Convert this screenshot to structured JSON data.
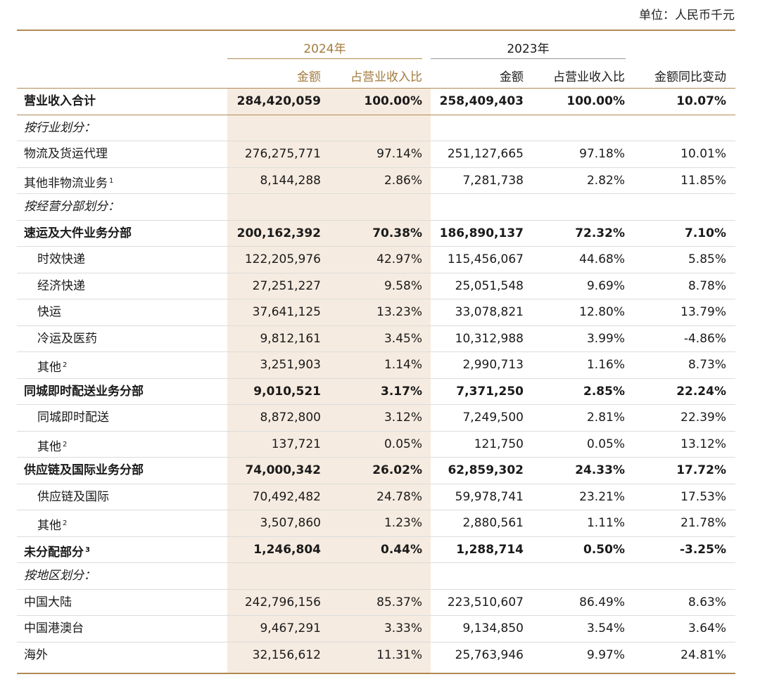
{
  "unit_label": "单位：人民币千元",
  "headers": {
    "year_2024": "2024年",
    "year_2023": "2023年",
    "amount_2024": "金额",
    "ratio_2024": "占营业收入比",
    "amount_2023": "金额",
    "ratio_2023": "占营业收入比",
    "yoy": "金额同比变动"
  },
  "colors": {
    "accent": "#b08a53",
    "accent_text": "#a37a3d",
    "shade": "#f6ebe0"
  },
  "rows": [
    {
      "label": "营业收入合计",
      "sup": "",
      "style": "bold",
      "v": [
        "284,420,059",
        "100.00%",
        "258,409,403",
        "100.00%",
        "10.07%"
      ]
    },
    {
      "label": "按行业划分：",
      "sup": "",
      "style": "section",
      "v": [
        "",
        "",
        "",
        "",
        ""
      ]
    },
    {
      "label": "物流及货运代理",
      "sup": "",
      "style": "normal",
      "v": [
        "276,275,771",
        "97.14%",
        "251,127,665",
        "97.18%",
        "10.01%"
      ]
    },
    {
      "label": "其他非物流业务",
      "sup": "1",
      "style": "normal",
      "v": [
        "8,144,288",
        "2.86%",
        "7,281,738",
        "2.82%",
        "11.85%"
      ]
    },
    {
      "label": "按经营分部划分：",
      "sup": "",
      "style": "section",
      "v": [
        "",
        "",
        "",
        "",
        ""
      ]
    },
    {
      "label": "速运及大件业务分部",
      "sup": "",
      "style": "bold",
      "v": [
        "200,162,392",
        "70.38%",
        "186,890,137",
        "72.32%",
        "7.10%"
      ]
    },
    {
      "label": "时效快递",
      "sup": "",
      "style": "indent",
      "v": [
        "122,205,976",
        "42.97%",
        "115,456,067",
        "44.68%",
        "5.85%"
      ]
    },
    {
      "label": "经济快递",
      "sup": "",
      "style": "indent",
      "v": [
        "27,251,227",
        "9.58%",
        "25,051,548",
        "9.69%",
        "8.78%"
      ]
    },
    {
      "label": "快运",
      "sup": "",
      "style": "indent",
      "v": [
        "37,641,125",
        "13.23%",
        "33,078,821",
        "12.80%",
        "13.79%"
      ]
    },
    {
      "label": "冷运及医药",
      "sup": "",
      "style": "indent",
      "v": [
        "9,812,161",
        "3.45%",
        "10,312,988",
        "3.99%",
        "-4.86%"
      ]
    },
    {
      "label": "其他",
      "sup": "2",
      "style": "indent",
      "v": [
        "3,251,903",
        "1.14%",
        "2,990,713",
        "1.16%",
        "8.73%"
      ]
    },
    {
      "label": "同城即时配送业务分部",
      "sup": "",
      "style": "bold",
      "v": [
        "9,010,521",
        "3.17%",
        "7,371,250",
        "2.85%",
        "22.24%"
      ]
    },
    {
      "label": "同城即时配送",
      "sup": "",
      "style": "indent",
      "v": [
        "8,872,800",
        "3.12%",
        "7,249,500",
        "2.81%",
        "22.39%"
      ]
    },
    {
      "label": "其他",
      "sup": "2",
      "style": "indent",
      "v": [
        "137,721",
        "0.05%",
        "121,750",
        "0.05%",
        "13.12%"
      ]
    },
    {
      "label": "供应链及国际业务分部",
      "sup": "",
      "style": "bold",
      "v": [
        "74,000,342",
        "26.02%",
        "62,859,302",
        "24.33%",
        "17.72%"
      ]
    },
    {
      "label": "供应链及国际",
      "sup": "",
      "style": "indent",
      "v": [
        "70,492,482",
        "24.78%",
        "59,978,741",
        "23.21%",
        "17.53%"
      ]
    },
    {
      "label": "其他",
      "sup": "2",
      "style": "indent",
      "v": [
        "3,507,860",
        "1.23%",
        "2,880,561",
        "1.11%",
        "21.78%"
      ]
    },
    {
      "label": "未分配部分",
      "sup": "3",
      "style": "bold",
      "v": [
        "1,246,804",
        "0.44%",
        "1,288,714",
        "0.50%",
        "-3.25%"
      ]
    },
    {
      "label": "按地区划分：",
      "sup": "",
      "style": "section",
      "v": [
        "",
        "",
        "",
        "",
        ""
      ]
    },
    {
      "label": "中国大陆",
      "sup": "",
      "style": "normal",
      "v": [
        "242,796,156",
        "85.37%",
        "223,510,607",
        "86.49%",
        "8.63%"
      ]
    },
    {
      "label": "中国港澳台",
      "sup": "",
      "style": "normal",
      "v": [
        "9,467,291",
        "3.33%",
        "9,134,850",
        "3.54%",
        "3.64%"
      ]
    },
    {
      "label": "海外",
      "sup": "",
      "style": "normal",
      "v": [
        "32,156,612",
        "11.31%",
        "25,763,946",
        "9.97%",
        "24.81%"
      ]
    }
  ]
}
